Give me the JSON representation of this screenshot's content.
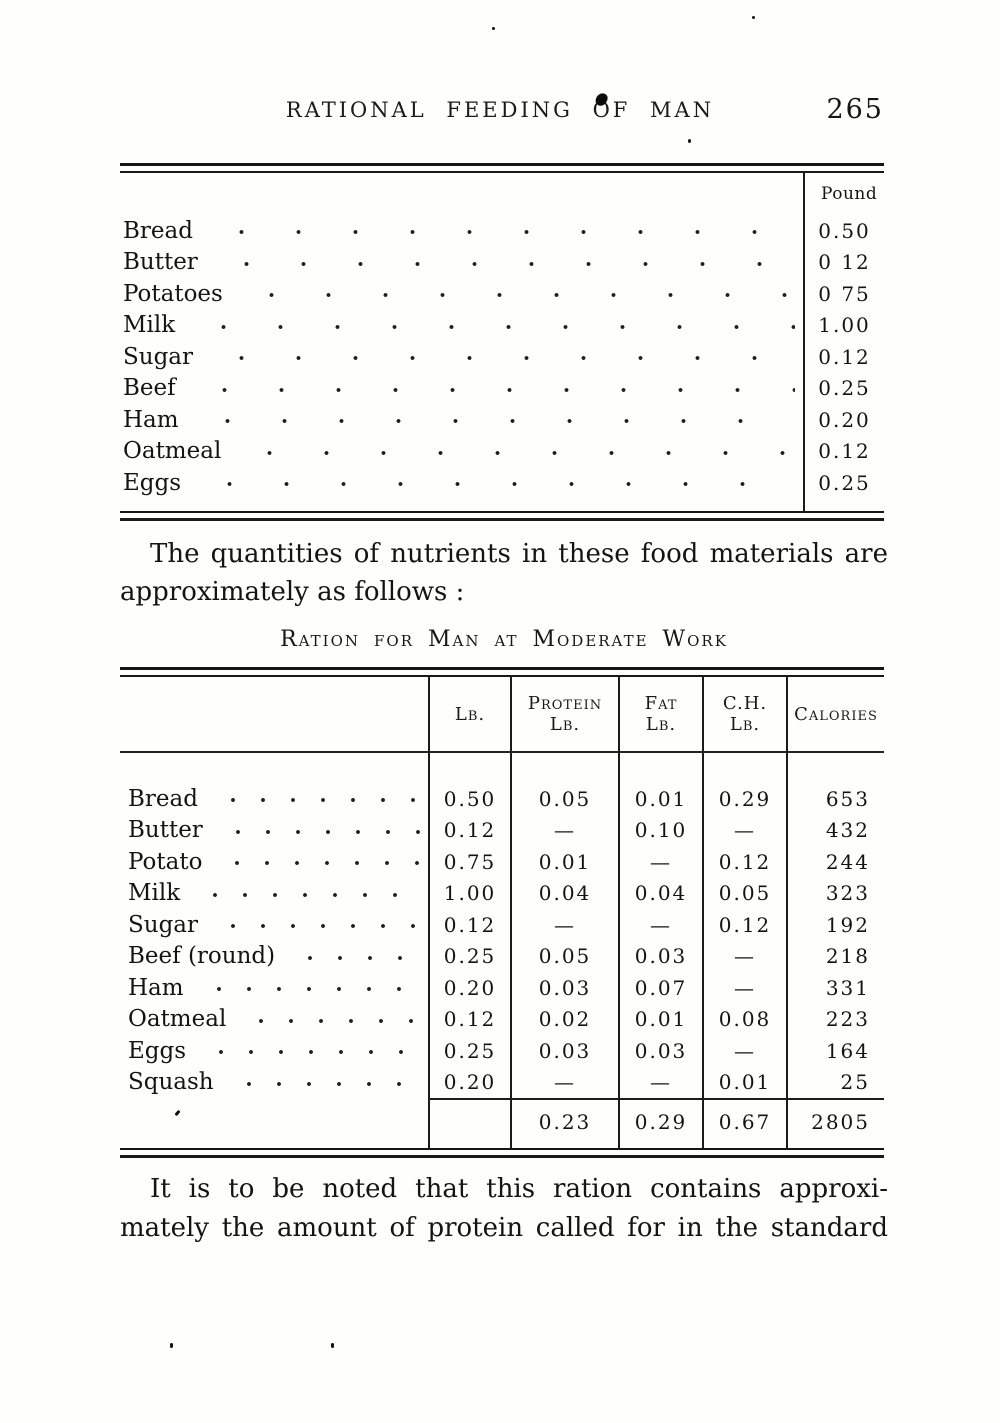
{
  "header": {
    "title": "RATIONAL FEEDING OF MAN",
    "page_number": "265"
  },
  "pound_table": {
    "value_header": "Pound",
    "rows": [
      {
        "label": "Bread",
        "value": "0.50"
      },
      {
        "label": "Butter",
        "value": "0 12"
      },
      {
        "label": "Potatoes",
        "value": "0 75"
      },
      {
        "label": "Milk",
        "value": "1.00"
      },
      {
        "label": "Sugar",
        "value": "0.12"
      },
      {
        "label": "Beef",
        "value": "0.25"
      },
      {
        "label": "Ham",
        "value": "0.20"
      },
      {
        "label": "Oatmeal",
        "value": "0.12"
      },
      {
        "label": "Eggs",
        "value": "0.25"
      }
    ]
  },
  "intro_paragraph": {
    "line1": "The quantities of nutrients in these food materials are",
    "line2": "approximately as follows :"
  },
  "ration_table": {
    "caption": "Ration for Man at Moderate Work",
    "column_headers": [
      {
        "line1": "",
        "line2": ""
      },
      {
        "line1": "Lb.",
        "line2": ""
      },
      {
        "line1": "Protein",
        "line2": "Lb."
      },
      {
        "line1": "Fat",
        "line2": "Lb."
      },
      {
        "line1": "C.H.",
        "line2": "Lb."
      },
      {
        "line1": "Calories",
        "line2": ""
      }
    ],
    "rows": [
      {
        "label": "Bread",
        "lb": "0.50",
        "protein": "0.05",
        "fat": "0.01",
        "ch": "0.29",
        "calories": "653"
      },
      {
        "label": "Butter",
        "lb": "0.12",
        "protein": "—",
        "fat": "0.10",
        "ch": "—",
        "calories": "432"
      },
      {
        "label": "Potato",
        "lb": "0.75",
        "protein": "0.01",
        "fat": "—",
        "ch": "0.12",
        "calories": "244"
      },
      {
        "label": "Milk",
        "lb": "1.00",
        "protein": "0.04",
        "fat": "0.04",
        "ch": "0.05",
        "calories": "323"
      },
      {
        "label": "Sugar",
        "lb": "0.12",
        "protein": "—",
        "fat": "—",
        "ch": "0.12",
        "calories": "192"
      },
      {
        "label": "Beef (round)",
        "lb": "0.25",
        "protein": "0.05",
        "fat": "0.03",
        "ch": "—",
        "calories": "218"
      },
      {
        "label": "Ham",
        "lb": "0.20",
        "protein": "0.03",
        "fat": "0.07",
        "ch": "—",
        "calories": "331"
      },
      {
        "label": "Oatmeal",
        "lb": "0.12",
        "protein": "0.02",
        "fat": "0.01",
        "ch": "0.08",
        "calories": "223"
      },
      {
        "label": "Eggs",
        "lb": "0.25",
        "protein": "0.03",
        "fat": "0.03",
        "ch": "—",
        "calories": "164"
      },
      {
        "label": "Squash",
        "lb": "0.20",
        "protein": "—",
        "fat": "—",
        "ch": "0.01",
        "calories": "25"
      }
    ],
    "totals": {
      "lb": "",
      "protein": "0.23",
      "fat": "0.29",
      "ch": "0.67",
      "calories": "2805"
    }
  },
  "closing_paragraph": {
    "line1": "It is to be noted that this ration contains approxi-",
    "line2": "mately the amount of protein called for in the standard"
  }
}
